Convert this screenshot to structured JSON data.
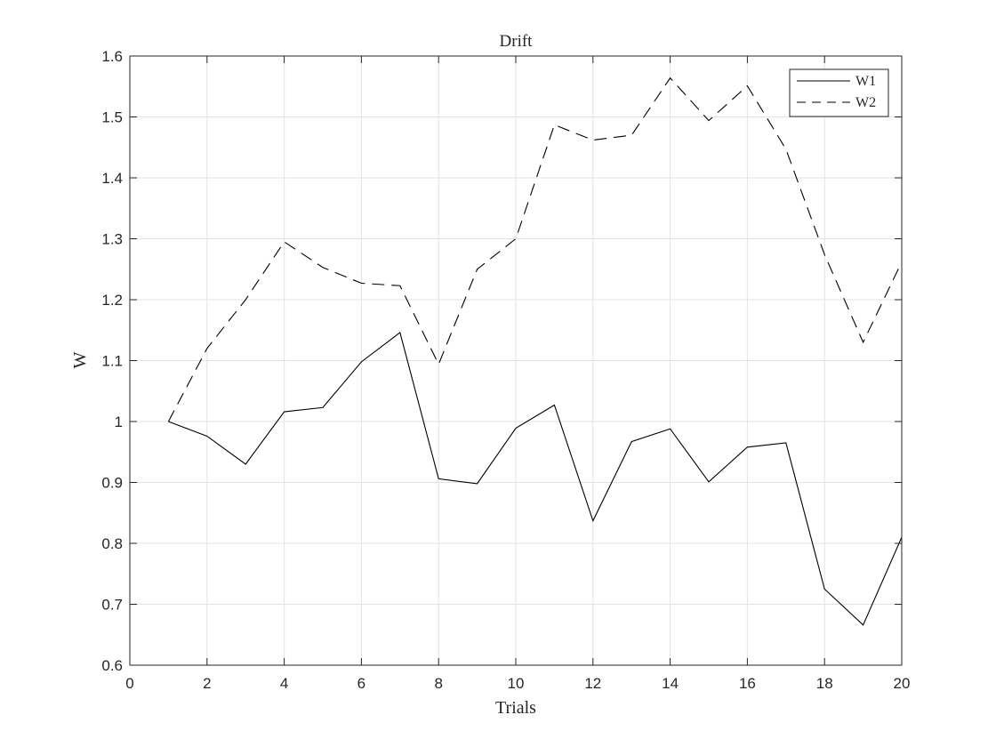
{
  "chart_data": {
    "type": "line",
    "title": "Drift",
    "xlabel": "Trials",
    "ylabel": "W",
    "xlim": [
      0,
      20
    ],
    "ylim": [
      0.6,
      1.6
    ],
    "xticks": [
      0,
      2,
      4,
      6,
      8,
      10,
      12,
      14,
      16,
      18,
      20
    ],
    "yticks": [
      0.6,
      0.7,
      0.8,
      0.9,
      1.0,
      1.1,
      1.2,
      1.3,
      1.4,
      1.5,
      1.6
    ],
    "ytick_labels": [
      "0.6",
      "0.7",
      "0.8",
      "0.9",
      "1",
      "1.1",
      "1.2",
      "1.3",
      "1.4",
      "1.5",
      "1.6"
    ],
    "grid": true,
    "legend_position": "top-right",
    "x": [
      1,
      2,
      3,
      4,
      5,
      6,
      7,
      8,
      9,
      10,
      11,
      12,
      13,
      14,
      15,
      16,
      17,
      18,
      19,
      20
    ],
    "series": [
      {
        "name": "W1",
        "line_style": "solid",
        "color": "#000000",
        "values": [
          1.0,
          0.976,
          0.93,
          1.016,
          1.023,
          1.098,
          1.146,
          0.906,
          0.898,
          0.989,
          1.027,
          0.837,
          0.967,
          0.988,
          0.901,
          0.958,
          0.965,
          0.725,
          0.666,
          0.81
        ]
      },
      {
        "name": "W2",
        "line_style": "dashed",
        "color": "#000000",
        "values": [
          1.0,
          1.12,
          1.2,
          1.295,
          1.253,
          1.227,
          1.223,
          1.094,
          1.25,
          1.3,
          1.487,
          1.462,
          1.47,
          1.564,
          1.494,
          1.551,
          1.447,
          1.274,
          1.13,
          1.262
        ]
      }
    ]
  }
}
